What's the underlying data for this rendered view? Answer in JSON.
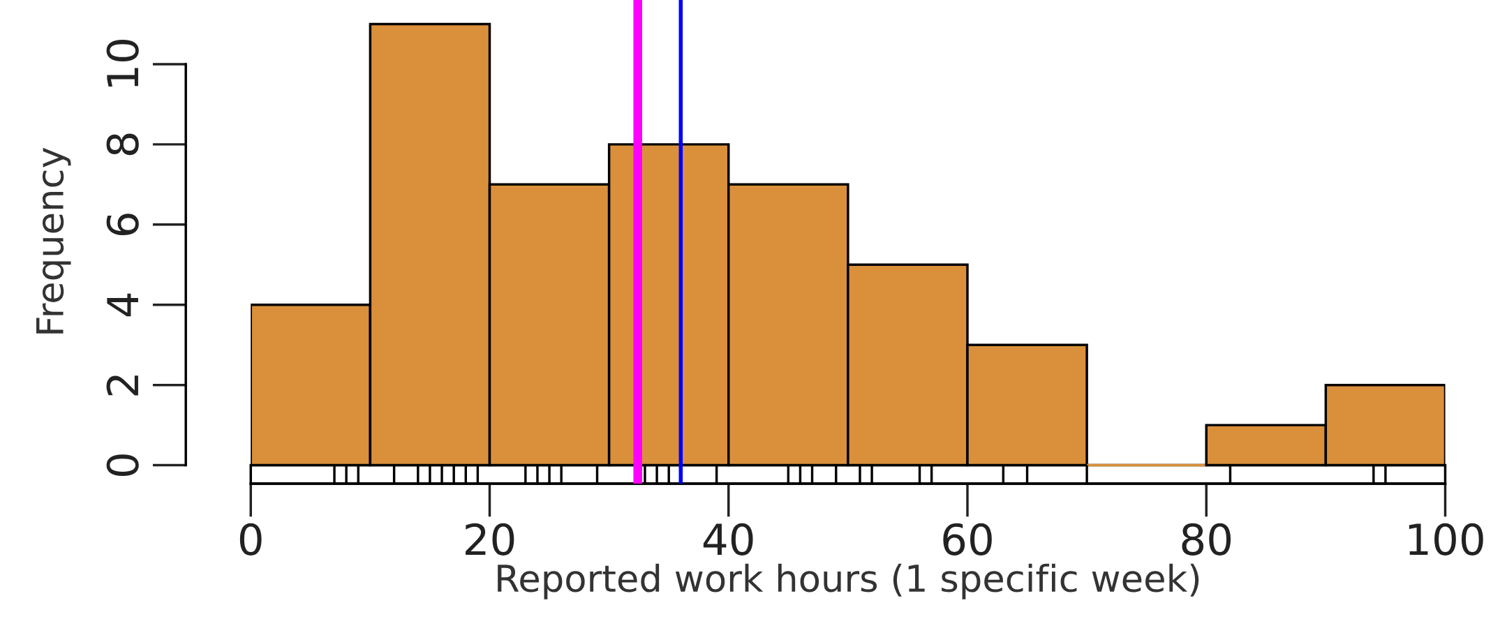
{
  "chart_data": {
    "type": "histogram",
    "xlabel": "Reported work hours (1 specific week)",
    "ylabel": "Frequency",
    "bins": [
      0,
      10,
      20,
      30,
      40,
      50,
      60,
      70,
      80,
      90,
      100
    ],
    "values": [
      4,
      11,
      7,
      8,
      7,
      5,
      3,
      0,
      1,
      2
    ],
    "color": "#da903b",
    "series": [
      {
        "type": "bar",
        "color": "#000000",
        "x": [
          7,
          8,
          9,
          12,
          14,
          15,
          16,
          17,
          18,
          19,
          23,
          24,
          25,
          26,
          29,
          33,
          34,
          35,
          39,
          45,
          46,
          47,
          49,
          51,
          52,
          56,
          57,
          63,
          65,
          70,
          82,
          94,
          95
        ],
        "base": [
          -0.46,
          -0.46,
          -0.46,
          -0.46,
          -0.46,
          -0.46,
          -0.46,
          -0.46,
          -0.46,
          -0.46,
          -0.46,
          -0.46,
          -0.46,
          -0.46,
          -0.46,
          -0.46,
          -0.46,
          -0.46,
          -0.46,
          -0.46,
          -0.46,
          -0.46,
          -0.46,
          -0.46,
          -0.46,
          -0.46,
          -0.46,
          -0.46,
          -0.46,
          -0.46,
          -0.46,
          -0.46,
          -0.46
        ],
        "values": [
          0.46,
          0.46,
          0.46,
          0.46,
          0.46,
          0.46,
          0.46,
          0.46,
          0.46,
          0.46,
          0.46,
          0.46,
          0.46,
          0.46,
          0.46,
          0.46,
          0.46,
          0.46,
          0.46,
          0.46,
          0.46,
          0.46,
          0.46,
          0.46,
          0.46,
          0.46,
          0.46,
          0.46,
          0.46,
          0.46,
          0.46,
          0.46,
          0.46
        ]
      }
    ],
    "ref_lines": [
      {
        "axis": "x",
        "value": 32.4,
        "color": "#ff00ff"
      },
      {
        "axis": "x",
        "value": 36.0,
        "color": "#0000ff"
      }
    ],
    "xlim": [
      0,
      100
    ],
    "xticks": [
      0,
      20,
      40,
      60,
      80,
      100
    ],
    "ylim": [
      -0.46,
      11.6
    ],
    "yticks": [
      0,
      2,
      4,
      6,
      8,
      10
    ],
    "grid": false,
    "legend": false
  }
}
